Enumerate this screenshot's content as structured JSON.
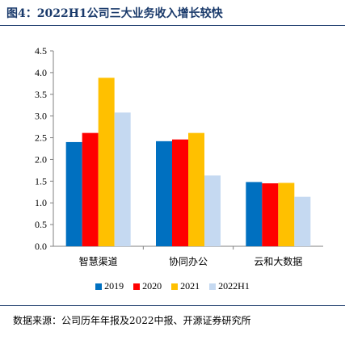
{
  "title": "图4：2022H1公司三大业务收入增长较快",
  "source": "数据来源：公司历年年报及2022中报、开源证券研究所",
  "chart_data": {
    "type": "bar",
    "categories": [
      "智慧渠道",
      "协同办公",
      "云和大数据"
    ],
    "series": [
      {
        "name": "2019",
        "color": "#0070c0",
        "values": [
          2.4,
          2.42,
          1.48
        ]
      },
      {
        "name": "2020",
        "color": "#ff0000",
        "values": [
          2.61,
          2.46,
          1.45
        ]
      },
      {
        "name": "2021",
        "color": "#ffc000",
        "values": [
          3.88,
          2.61,
          1.46
        ]
      },
      {
        "name": "2022H1",
        "color": "#c5d9f1",
        "values": [
          3.08,
          1.63,
          1.14
        ]
      }
    ],
    "yticks": [
      "0.0",
      "0.5",
      "1.0",
      "1.5",
      "2.0",
      "2.5",
      "3.0",
      "3.5",
      "4.0",
      "4.5"
    ],
    "ylim": [
      0,
      4.5
    ],
    "legend": "bottom",
    "grid": false
  }
}
